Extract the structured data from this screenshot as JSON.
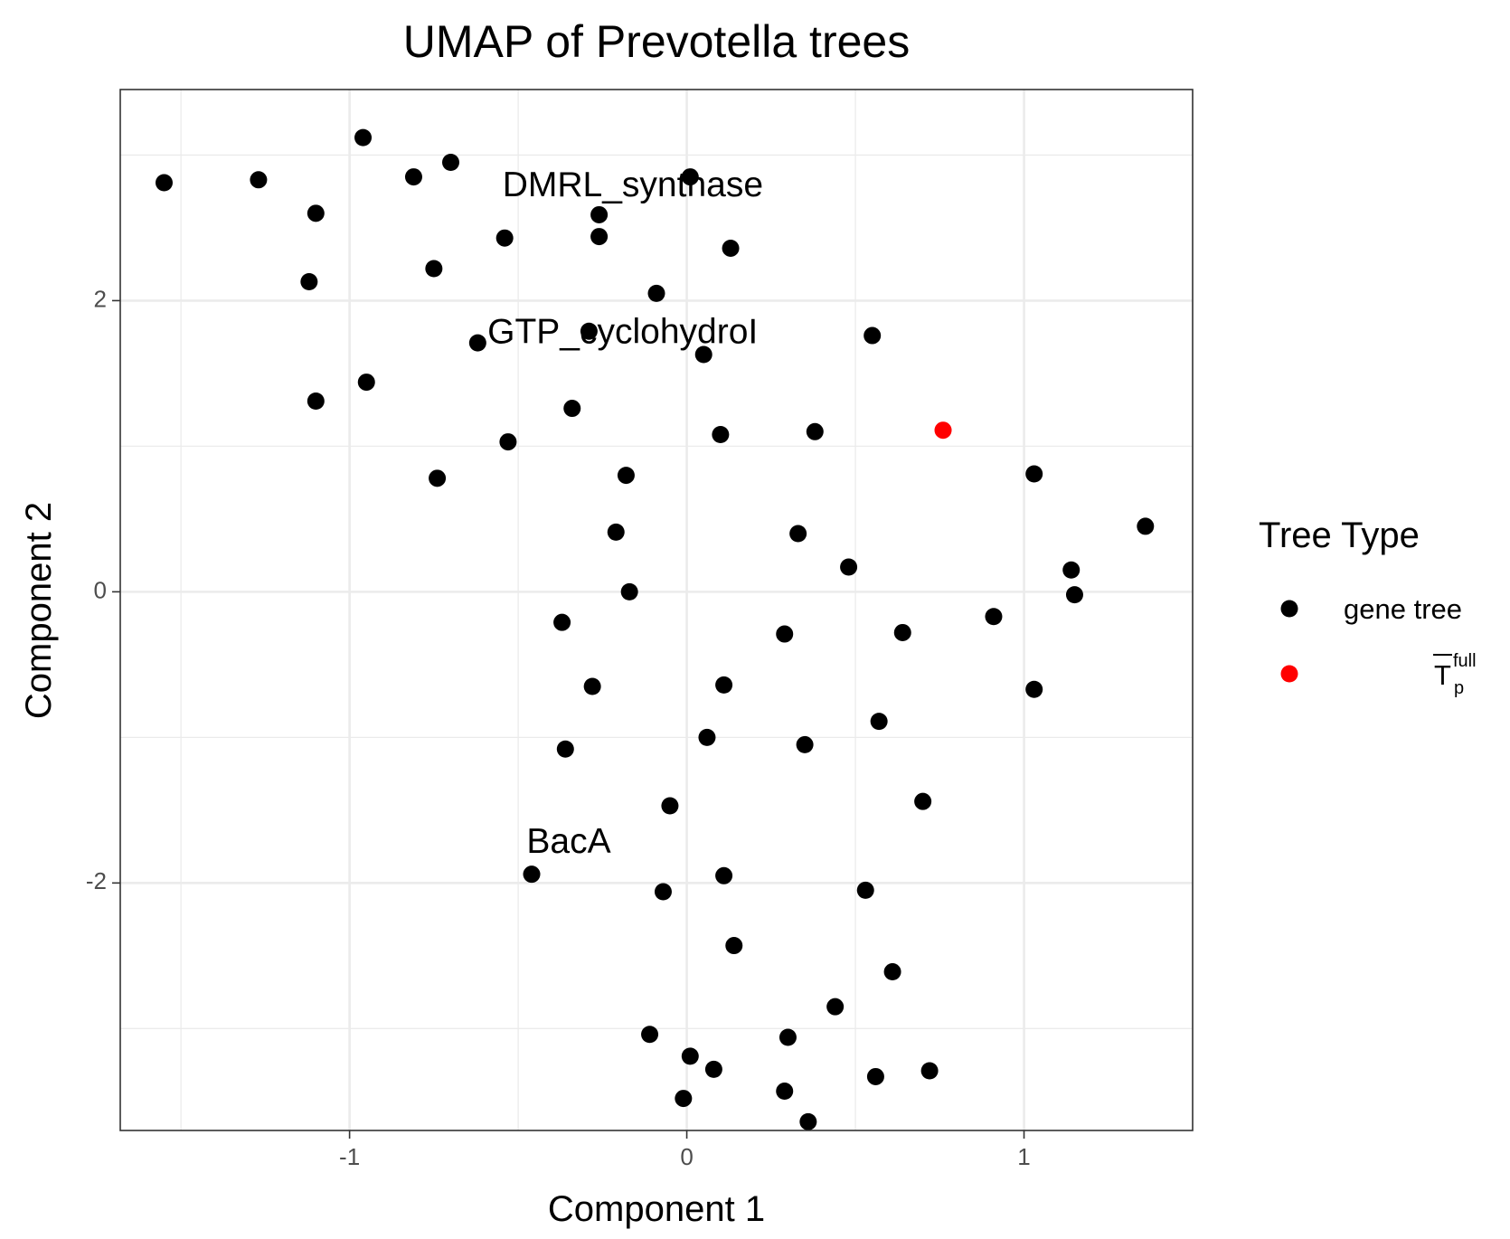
{
  "chart_data": {
    "type": "scatter",
    "title": "UMAP of Prevotella trees",
    "xlabel": "Component 1",
    "ylabel": "Component 2",
    "xlim": [
      -1.68,
      1.5
    ],
    "ylim": [
      -3.7,
      3.45
    ],
    "x_ticks": [
      -1,
      0,
      1
    ],
    "x_tick_labels": [
      "-1",
      "0",
      "1"
    ],
    "y_ticks": [
      -2,
      0,
      2
    ],
    "y_tick_labels": [
      "-2",
      "0",
      "2"
    ],
    "grid": true,
    "legend": {
      "title": "Tree Type",
      "placement": "right",
      "entries": [
        {
          "label": "gene tree",
          "color": "#000000"
        },
        {
          "label_main": "T",
          "label_sup": "full",
          "label_sub": "p",
          "overline": true,
          "color": "#ff0000"
        }
      ]
    },
    "annotations": [
      {
        "text": "DMRL_synthase",
        "x": -0.16,
        "y": 2.78
      },
      {
        "text": "GTP_cyclohydroI",
        "x": -0.19,
        "y": 1.77
      },
      {
        "text": "BacA",
        "x": -0.35,
        "y": -1.73
      }
    ],
    "series": [
      {
        "name": "gene tree",
        "color": "#000000",
        "points": [
          [
            -1.55,
            2.81
          ],
          [
            -1.27,
            2.83
          ],
          [
            -0.96,
            3.12
          ],
          [
            -0.81,
            2.85
          ],
          [
            -0.7,
            2.95
          ],
          [
            -1.1,
            2.6
          ],
          [
            -0.54,
            2.43
          ],
          [
            -0.26,
            2.59
          ],
          [
            -0.26,
            2.44
          ],
          [
            0.01,
            2.85
          ],
          [
            0.13,
            2.36
          ],
          [
            -0.75,
            2.22
          ],
          [
            -1.12,
            2.13
          ],
          [
            -0.09,
            2.05
          ],
          [
            -0.62,
            1.71
          ],
          [
            -0.29,
            1.79
          ],
          [
            0.05,
            1.63
          ],
          [
            0.55,
            1.76
          ],
          [
            -0.95,
            1.44
          ],
          [
            -1.1,
            1.31
          ],
          [
            -0.34,
            1.26
          ],
          [
            -0.53,
            1.03
          ],
          [
            0.1,
            1.08
          ],
          [
            0.38,
            1.1
          ],
          [
            -0.74,
            0.78
          ],
          [
            -0.18,
            0.8
          ],
          [
            1.03,
            0.81
          ],
          [
            1.36,
            0.45
          ],
          [
            -0.21,
            0.41
          ],
          [
            0.33,
            0.4
          ],
          [
            0.48,
            0.17
          ],
          [
            1.14,
            0.15
          ],
          [
            1.15,
            -0.02
          ],
          [
            -0.17,
            0.0
          ],
          [
            -0.37,
            -0.21
          ],
          [
            0.29,
            -0.29
          ],
          [
            0.64,
            -0.28
          ],
          [
            0.91,
            -0.17
          ],
          [
            -0.28,
            -0.65
          ],
          [
            0.11,
            -0.64
          ],
          [
            1.03,
            -0.67
          ],
          [
            0.57,
            -0.89
          ],
          [
            0.06,
            -1.0
          ],
          [
            0.35,
            -1.05
          ],
          [
            -0.36,
            -1.08
          ],
          [
            0.7,
            -1.44
          ],
          [
            -0.05,
            -1.47
          ],
          [
            -0.46,
            -1.94
          ],
          [
            0.11,
            -1.95
          ],
          [
            -0.07,
            -2.06
          ],
          [
            0.53,
            -2.05
          ],
          [
            0.14,
            -2.43
          ],
          [
            0.61,
            -2.61
          ],
          [
            0.44,
            -2.85
          ],
          [
            -0.11,
            -3.04
          ],
          [
            0.3,
            -3.06
          ],
          [
            0.01,
            -3.19
          ],
          [
            0.08,
            -3.28
          ],
          [
            0.72,
            -3.29
          ],
          [
            0.56,
            -3.33
          ],
          [
            0.29,
            -3.43
          ],
          [
            -0.01,
            -3.48
          ],
          [
            0.36,
            -3.64
          ]
        ]
      },
      {
        "name_main": "T",
        "name_sup": "full",
        "name_sub": "p",
        "color": "#ff0000",
        "points": [
          [
            0.76,
            1.11
          ]
        ]
      }
    ]
  }
}
